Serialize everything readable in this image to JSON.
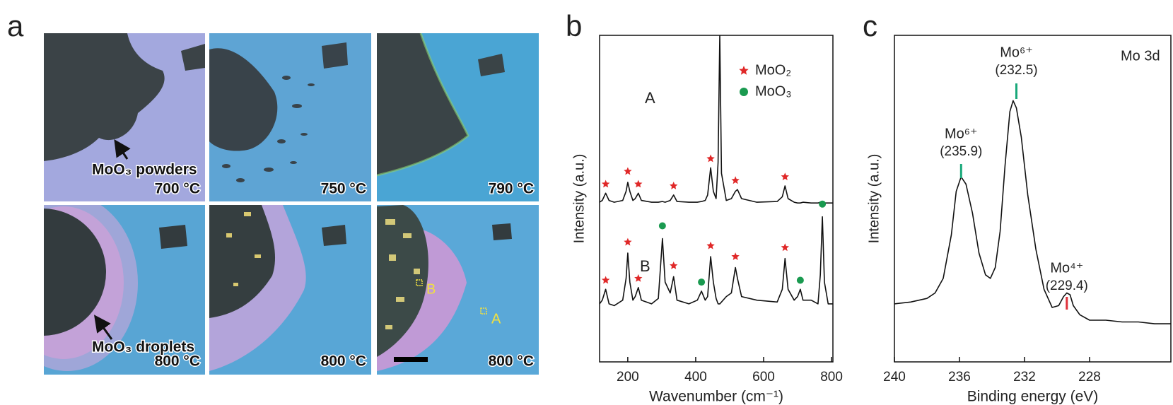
{
  "panel_labels": [
    "a",
    "b",
    "c"
  ],
  "panel_a": {
    "images": [
      {
        "caption": "700 °C",
        "annotation": "MoO₃ powders"
      },
      {
        "caption": "750 °C"
      },
      {
        "caption": "790 °C"
      },
      {
        "caption": "800 °C",
        "annotation": "MoO₃ droplets"
      },
      {
        "caption": "800 °C"
      },
      {
        "caption": "800 °C",
        "markers": [
          "B",
          "A"
        ]
      }
    ]
  },
  "chart_data": [
    {
      "type": "line",
      "xlabel": "Wavenumber (cm⁻¹)",
      "ylabel": "Intensity (a.u.)",
      "xlim": [
        117,
        804
      ],
      "ylim": [
        1,
        10
      ],
      "xticks": [
        200,
        400,
        600,
        800
      ],
      "x": [
        117,
        125,
        135,
        145,
        160,
        185,
        195,
        200,
        206,
        215,
        222,
        231,
        240,
        270,
        290,
        302,
        310,
        325,
        335,
        345,
        380,
        405,
        417,
        428,
        435,
        444,
        452,
        460,
        466,
        471,
        476,
        490,
        505,
        517,
        523,
        535,
        580,
        640,
        655,
        663,
        672,
        690,
        700,
        708,
        716,
        740,
        760,
        767,
        773,
        779,
        790,
        804
      ],
      "series": [
        {
          "name": "A",
          "color": "#111111",
          "values": [
            5.4,
            5.45,
            5.65,
            5.45,
            5.4,
            5.45,
            5.7,
            5.95,
            5.7,
            5.45,
            5.5,
            5.65,
            5.45,
            5.4,
            5.4,
            5.42,
            5.4,
            5.45,
            5.6,
            5.42,
            5.4,
            5.4,
            5.42,
            5.45,
            5.6,
            6.35,
            5.7,
            5.5,
            6.5,
            10,
            6.2,
            5.45,
            5.5,
            5.7,
            5.75,
            5.5,
            5.4,
            5.42,
            5.55,
            5.85,
            5.5,
            5.4,
            5.38,
            5.38,
            5.4,
            5.38,
            5.38,
            5.4,
            5.4,
            5.38,
            5.38,
            5.38
          ]
        },
        {
          "name": "B",
          "color": "#111111",
          "values": [
            2.6,
            2.7,
            3.0,
            2.6,
            2.55,
            2.7,
            3.3,
            4.0,
            3.2,
            2.7,
            2.8,
            3.05,
            2.7,
            2.6,
            2.75,
            4.4,
            3.2,
            2.9,
            3.35,
            2.7,
            2.6,
            2.7,
            2.95,
            2.7,
            2.8,
            3.9,
            3.2,
            2.75,
            2.6,
            2.6,
            2.65,
            2.8,
            2.9,
            3.6,
            3.3,
            2.8,
            2.7,
            2.65,
            3.0,
            3.85,
            3.0,
            2.7,
            2.8,
            3.0,
            2.7,
            2.7,
            2.6,
            3.4,
            5.0,
            3.2,
            2.6,
            2.6
          ]
        }
      ],
      "markers": [
        {
          "name": "MoO₂",
          "color": "#e02828",
          "shape": "star",
          "x": [
            135,
            200,
            231,
            335,
            444,
            517,
            663,
            135,
            200,
            231,
            335,
            444,
            517,
            663
          ],
          "values": [
            5.9,
            6.25,
            5.9,
            5.85,
            6.6,
            6.0,
            6.1,
            3.25,
            4.3,
            3.3,
            3.65,
            4.2,
            3.9,
            4.15
          ]
        },
        {
          "name": "MoO₃",
          "color": "#1a9a50",
          "shape": "circle",
          "x": [
            302,
            417,
            708,
            773
          ],
          "values": [
            4.75,
            3.2,
            3.25,
            5.35
          ]
        }
      ]
    },
    {
      "type": "line",
      "xlabel": "Binding energy (eV)",
      "ylabel": "Intensity (a.u.)",
      "xlim": [
        240,
        223
      ],
      "ylim": [
        1,
        10
      ],
      "xticks": [
        240,
        236,
        232,
        228
      ],
      "x": [
        240,
        239,
        238,
        237.5,
        237,
        236.5,
        236.2,
        235.9,
        235.6,
        235.2,
        234.8,
        234.4,
        234.1,
        233.8,
        233.5,
        233.2,
        232.9,
        232.7,
        232.5,
        232.2,
        231.8,
        231.3,
        230.8,
        230.3,
        229.9,
        229.6,
        229.4,
        229.2,
        229.0,
        228.6,
        228,
        227,
        226,
        225,
        224,
        223
      ],
      "series": [
        {
          "color": "#111111",
          "values": [
            2.6,
            2.65,
            2.75,
            2.9,
            3.3,
            4.5,
            5.7,
            6.1,
            5.9,
            5.1,
            4.0,
            3.4,
            3.3,
            3.6,
            4.6,
            6.4,
            7.9,
            8.2,
            8.0,
            7.2,
            5.6,
            4.1,
            3.0,
            2.5,
            2.55,
            2.8,
            2.9,
            2.85,
            2.55,
            2.3,
            2.15,
            2.15,
            2.1,
            2.1,
            2.05,
            2.05
          ]
        }
      ],
      "inset_label": "Mo 3d",
      "annotations": [
        {
          "label": "Mo⁶⁺",
          "position": {
            "value": 232.5,
            "label": "(232.5)"
          },
          "color": "#19a87a"
        },
        {
          "label": "Mo⁶⁺",
          "position": {
            "value": 235.9,
            "label": "(235.9)"
          },
          "color": "#19a87a"
        },
        {
          "label": "Mo⁴⁺",
          "position": {
            "value": 229.4,
            "label": "(229.4)"
          },
          "color": "#e0303a"
        }
      ]
    }
  ]
}
